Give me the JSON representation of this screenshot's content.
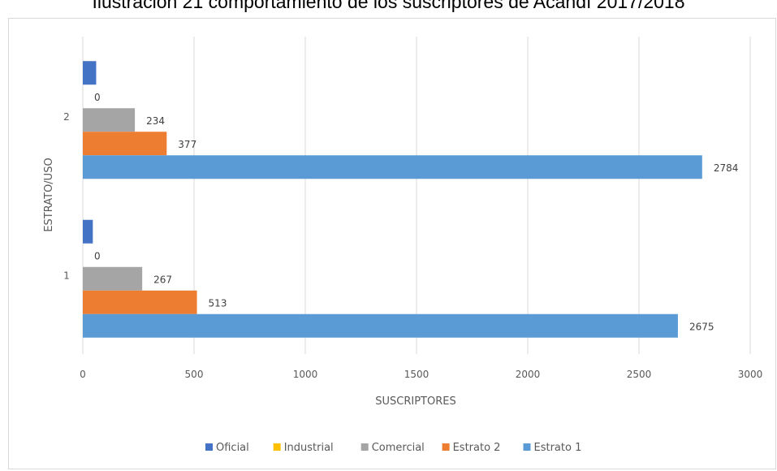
{
  "title": "Ilustración 21 comportamiento de los suscriptores de Acandí 2017/2018",
  "chart_data": {
    "type": "bar",
    "orientation": "horizontal",
    "title": "Ilustración 21 comportamiento de los suscriptores de Acandí 2017/2018",
    "xlabel": "SUSCRIPTORES",
    "ylabel": "ESTRATO/USO",
    "xlim": [
      0,
      3000
    ],
    "xticks": [
      "0",
      "500",
      "1000",
      "1500",
      "2000",
      "2500",
      "3000"
    ],
    "categories": [
      "1",
      "2"
    ],
    "grid": true,
    "legend_position": "bottom",
    "series": [
      {
        "name": "Oficial",
        "color": "#4472c4",
        "values": [
          45,
          60
        ],
        "labels": [
          "",
          ""
        ]
      },
      {
        "name": "Industrial",
        "color": "#ffc000",
        "values": [
          0,
          0
        ],
        "labels": [
          "0",
          "0"
        ]
      },
      {
        "name": "Comercial",
        "color": "#a5a5a5",
        "values": [
          267,
          234
        ],
        "labels": [
          "267",
          "234"
        ]
      },
      {
        "name": "Estrato 2",
        "color": "#ed7d31",
        "values": [
          513,
          377
        ],
        "labels": [
          "513",
          "377"
        ]
      },
      {
        "name": "Estrato 1",
        "color": "#5b9bd5",
        "values": [
          2675,
          2784
        ],
        "labels": [
          "2675",
          "2784"
        ]
      }
    ]
  }
}
